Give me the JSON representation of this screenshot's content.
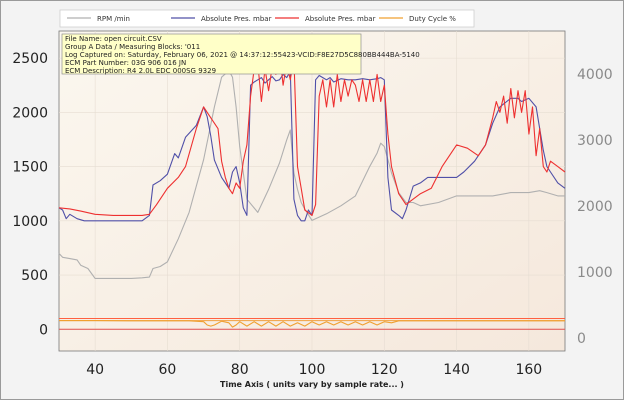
{
  "chart_data": {
    "type": "line",
    "xlabel": "Time Axis ( units vary by sample rate... )",
    "xlim": [
      30,
      170
    ],
    "ylim_left": [
      -200,
      2750
    ],
    "ylim_right": [
      -200,
      4650
    ],
    "x_ticks": [
      40,
      60,
      80,
      100,
      120,
      140,
      160
    ],
    "y_left_ticks": [
      0,
      500,
      1000,
      1500,
      2000,
      2500
    ],
    "y_right_ticks": [
      0,
      1000,
      2000,
      3000,
      4000
    ],
    "legend": [
      "RPM /min",
      "Absolute Pres. mbar",
      "Absolute Pres. mbar",
      "Duty Cycle %"
    ],
    "info_lines": [
      "File Name: open circuit.CSV",
      "Group A Data / Measuring Blocks: '011",
      "Log Captured on: Saturday, February 06, 2021 @ 14:37:12:55423-VCID:F8E27D5C880BB444BA-5140",
      "ECM Part Number: 03G 906 016 JN",
      "ECM Description: R4 2.0L EDC  000SG  9329"
    ],
    "colors": {
      "rpm": "#b0b0b0",
      "pres_actual": "#5050a8",
      "pres_spec": "#ee3030",
      "duty": "#f0a030",
      "info_bg": "#ffffc8"
    },
    "series": [
      {
        "name": "RPM /min",
        "axis": "right",
        "x": [
          30,
          31,
          33,
          35,
          36,
          38,
          40,
          45,
          50,
          53,
          55,
          56,
          58,
          60,
          63,
          66,
          68,
          70,
          73,
          75,
          77,
          78,
          79,
          80,
          82,
          85,
          88,
          91,
          93,
          94,
          95,
          96,
          97,
          98,
          100,
          104,
          108,
          112,
          116,
          118,
          119,
          120,
          121,
          122,
          124,
          126,
          128,
          130,
          135,
          140,
          145,
          150,
          155,
          160,
          163,
          165,
          168,
          170
        ],
        "y": [
          1280,
          1220,
          1200,
          1180,
          1100,
          1050,
          900,
          900,
          900,
          910,
          920,
          1050,
          1080,
          1150,
          1500,
          1900,
          2300,
          2700,
          3500,
          3950,
          4050,
          3950,
          3500,
          2900,
          2100,
          1900,
          2250,
          2650,
          3000,
          3150,
          2500,
          2250,
          2050,
          1950,
          1780,
          1880,
          2000,
          2150,
          2600,
          2800,
          2950,
          2900,
          2700,
          2500,
          2200,
          2050,
          2050,
          2000,
          2050,
          2150,
          2150,
          2150,
          2200,
          2200,
          2230,
          2200,
          2150,
          2150
        ]
      },
      {
        "name": "Absolute Pres. mbar",
        "axis": "left",
        "x": [
          30,
          31,
          32,
          33,
          35,
          37,
          40,
          45,
          50,
          53,
          55,
          56,
          58,
          60,
          62,
          63,
          65,
          68,
          70,
          71,
          72,
          73,
          75,
          76,
          77,
          78,
          79,
          80,
          81,
          82,
          83,
          84,
          85,
          86,
          87,
          88,
          89,
          90,
          91,
          92,
          93,
          94,
          95,
          96,
          97,
          98,
          99,
          100,
          101,
          102,
          103,
          104,
          105,
          106,
          108,
          110,
          112,
          114,
          116,
          118,
          119,
          120,
          121,
          122,
          124,
          125,
          126,
          128,
          130,
          132,
          135,
          138,
          140,
          142,
          145,
          148,
          150,
          152,
          155,
          157,
          158,
          160,
          162,
          164,
          165,
          166,
          168,
          170
        ],
        "y": [
          1120,
          1100,
          1020,
          1060,
          1020,
          1000,
          1000,
          1000,
          1000,
          1000,
          1050,
          1330,
          1370,
          1430,
          1620,
          1580,
          1770,
          1880,
          2050,
          1960,
          1780,
          1560,
          1400,
          1350,
          1300,
          1450,
          1500,
          1350,
          1120,
          1050,
          2250,
          2280,
          2300,
          2320,
          2270,
          2300,
          2330,
          2290,
          2300,
          2350,
          2320,
          2380,
          1200,
          1050,
          1000,
          1000,
          1100,
          1050,
          2300,
          2340,
          2320,
          2300,
          2320,
          2280,
          2310,
          2300,
          2300,
          2310,
          2300,
          2310,
          2320,
          2300,
          1400,
          1100,
          1050,
          1020,
          1100,
          1320,
          1350,
          1400,
          1400,
          1400,
          1400,
          1450,
          1550,
          1700,
          1900,
          2050,
          2130,
          2130,
          2100,
          2130,
          2050,
          1650,
          1500,
          1450,
          1350,
          1300
        ]
      },
      {
        "name": "Absolute Pres. mbar",
        "axis": "left",
        "x": [
          30,
          33,
          36,
          40,
          45,
          50,
          53,
          55,
          57,
          60,
          63,
          65,
          68,
          70,
          71,
          72,
          74,
          75,
          76,
          77,
          78,
          79,
          80,
          81,
          82,
          83,
          84,
          85,
          86,
          87,
          88,
          89,
          90,
          91,
          92,
          93,
          94,
          95,
          96,
          97,
          98,
          100,
          101,
          102,
          103,
          104,
          105,
          106,
          107,
          108,
          109,
          110,
          111,
          112,
          113,
          114,
          115,
          116,
          117,
          118,
          119,
          120,
          121,
          122,
          124,
          126,
          128,
          130,
          133,
          136,
          140,
          143,
          146,
          148,
          150,
          151,
          152,
          153,
          154,
          155,
          156,
          157,
          158,
          159,
          160,
          161,
          162,
          163,
          164,
          165,
          166,
          168,
          170
        ],
        "y": [
          1120,
          1110,
          1090,
          1060,
          1050,
          1050,
          1050,
          1060,
          1150,
          1300,
          1400,
          1500,
          1850,
          2050,
          2000,
          1950,
          1850,
          1550,
          1400,
          1300,
          1250,
          1350,
          1300,
          1550,
          1700,
          2150,
          2400,
          2450,
          2100,
          2400,
          2200,
          2420,
          2350,
          2550,
          2250,
          2450,
          2300,
          2500,
          1500,
          1300,
          1100,
          1050,
          1150,
          2150,
          2300,
          2050,
          2300,
          2050,
          2350,
          2100,
          2300,
          2150,
          2300,
          2250,
          2100,
          2300,
          2100,
          2300,
          2100,
          2350,
          2100,
          2250,
          1800,
          1500,
          1250,
          1150,
          1200,
          1250,
          1300,
          1500,
          1700,
          1670,
          1600,
          1700,
          1950,
          2100,
          2000,
          2150,
          1900,
          2220,
          1950,
          2200,
          2000,
          2200,
          1800,
          2050,
          1600,
          1850,
          1500,
          1450,
          1550,
          1500,
          1450
        ]
      },
      {
        "name": "Duty Cycle %",
        "axis": "left",
        "x": [
          30,
          40,
          50,
          60,
          66,
          70,
          71,
          72,
          73,
          75,
          77,
          78,
          79,
          80,
          82,
          84,
          86,
          88,
          90,
          92,
          94,
          96,
          98,
          100,
          102,
          104,
          106,
          108,
          110,
          112,
          114,
          116,
          118,
          120,
          122,
          124,
          126,
          128,
          130,
          140,
          150,
          155,
          160,
          165,
          170
        ],
        "y": [
          80,
          80,
          78,
          78,
          78,
          70,
          40,
          30,
          40,
          75,
          60,
          20,
          40,
          70,
          30,
          70,
          30,
          70,
          30,
          70,
          30,
          60,
          30,
          70,
          40,
          70,
          40,
          70,
          40,
          70,
          40,
          70,
          40,
          70,
          60,
          78,
          78,
          78,
          78,
          78,
          78,
          78,
          78,
          78,
          78
        ]
      }
    ],
    "reference_lines": [
      {
        "axis": "left",
        "y": 100,
        "color": "#ff6040"
      },
      {
        "axis": "left",
        "y": 80,
        "color": "#f0a040"
      },
      {
        "axis": "left",
        "y": 0,
        "color": "#e05050"
      }
    ]
  }
}
